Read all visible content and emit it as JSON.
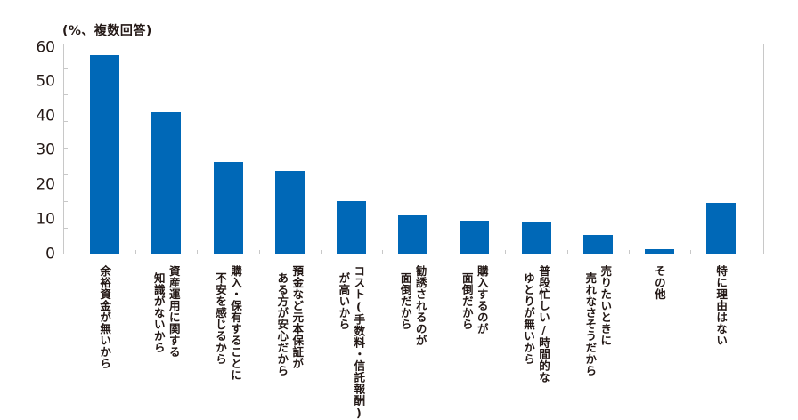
{
  "chart_data": {
    "type": "bar",
    "title": "",
    "unit_label": "(%、複数回答)",
    "xlabel": "",
    "ylabel": "%",
    "ylim": [
      0,
      60
    ],
    "yticks": [
      0,
      10,
      20,
      30,
      40,
      50,
      60
    ],
    "grid": false,
    "legend": null,
    "bar_color": "#0068B7",
    "categories": [
      "余裕資金が無いから",
      "資産運用に関する知識がないから",
      "購入・保有することに不安を感じるから",
      "預金など元本保証がある方が安心だから",
      "コスト(手数料・信託報酬)が高いから",
      "勧誘されるのが面倒だから",
      "購入するのが面倒だから",
      "普段忙しい/時間的なゆとりが無いから",
      "売りたいときに売れなさそうだから",
      "その他",
      "特に理由はない"
    ],
    "category_lines": [
      [
        "余裕資金が無いから"
      ],
      [
        "資産運用に関する",
        "知識がないから"
      ],
      [
        "購入・保有することに",
        "不安を感じるから"
      ],
      [
        "預金など元本保証が",
        "ある方が安心だから"
      ],
      [
        "コスト(手数料・信託報酬)",
        "が高いから"
      ],
      [
        "勧誘されるのが",
        "面倒だから"
      ],
      [
        "購入するのが",
        "面倒だから"
      ],
      [
        "普段忙しい/時間的な",
        "ゆとりが無いから"
      ],
      [
        "売りたいときに",
        "売れなさそうだから"
      ],
      [
        "その他"
      ],
      [
        "特に理由はない"
      ]
    ],
    "values": [
      58.0,
      41.3,
      26.9,
      24.4,
      15.5,
      11.3,
      9.9,
      9.2,
      5.8,
      1.6,
      14.9
    ]
  },
  "axis": {
    "y_labels": [
      "60",
      "50",
      "40",
      "30",
      "20",
      "10",
      "0"
    ]
  }
}
